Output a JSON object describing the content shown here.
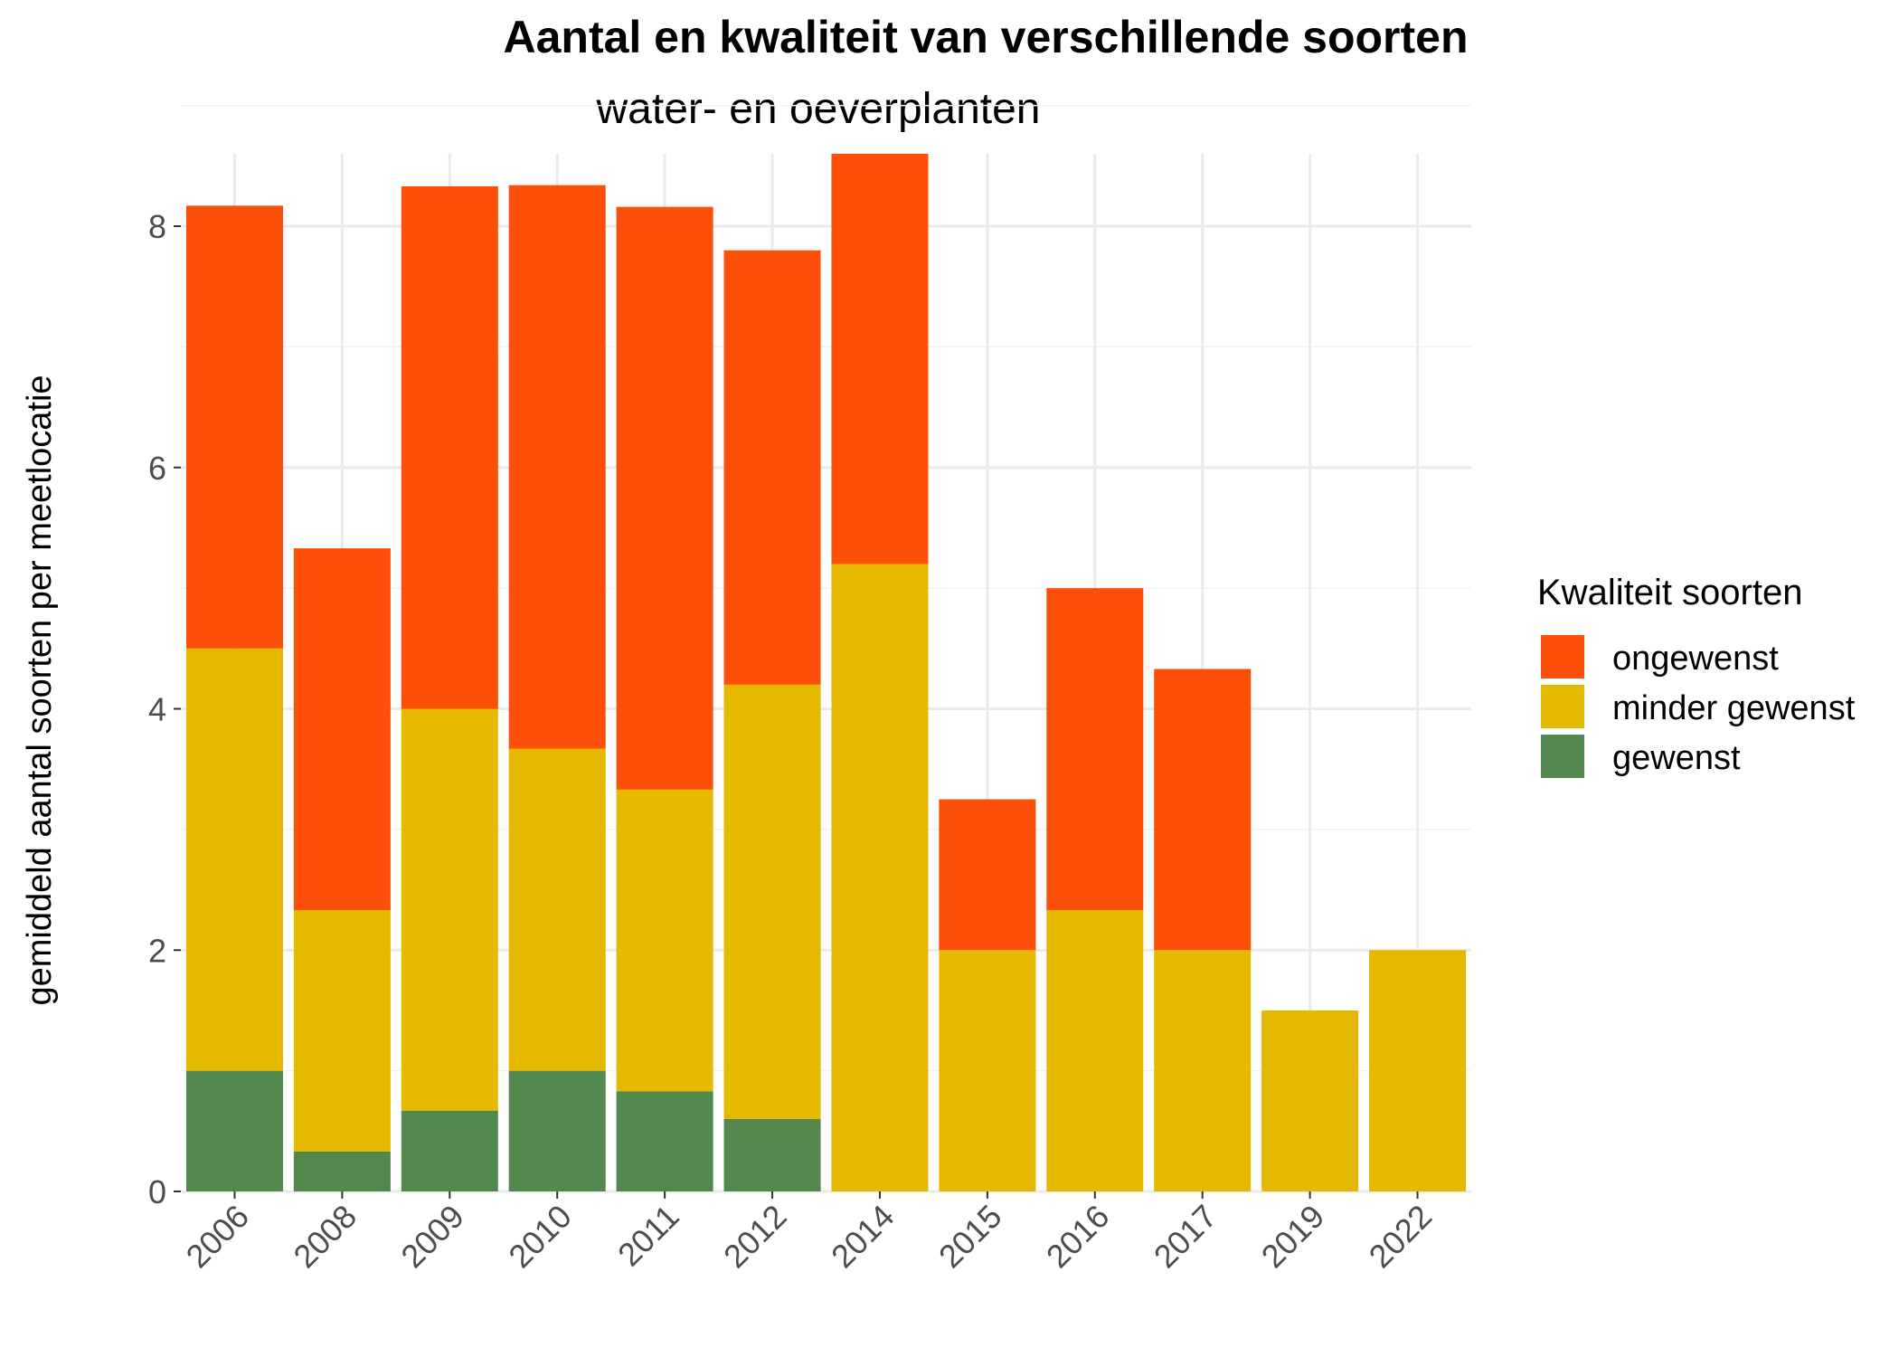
{
  "chart_data": {
    "type": "bar",
    "stacked": true,
    "title": "Aantal en kwaliteit van verschillende soorten",
    "subtitle": "water- en oeverplanten",
    "xlabel": "",
    "ylabel": "gemiddeld aantal soorten per meetlocatie",
    "ylim": [
      0,
      8.6
    ],
    "y_ticks": [
      0,
      2,
      4,
      6,
      8
    ],
    "grid": true,
    "categories": [
      "2006",
      "2008",
      "2009",
      "2010",
      "2011",
      "2012",
      "2014",
      "2015",
      "2016",
      "2017",
      "2019",
      "2022"
    ],
    "series": [
      {
        "name": "gewenst",
        "color": "#52874E",
        "values": [
          1.0,
          0.33,
          0.67,
          1.0,
          0.83,
          0.6,
          0,
          0,
          0,
          0,
          0,
          0
        ]
      },
      {
        "name": "minder gewenst",
        "color": "#E5B900",
        "values": [
          3.5,
          2.0,
          3.33,
          2.67,
          2.5,
          3.6,
          5.2,
          2.0,
          2.33,
          2.0,
          1.5,
          2.0
        ]
      },
      {
        "name": "ongewenst",
        "color": "#FC4F0A",
        "values": [
          3.67,
          3.0,
          4.33,
          4.67,
          4.83,
          3.6,
          3.4,
          1.25,
          2.67,
          2.33,
          0,
          0
        ]
      }
    ],
    "legend": {
      "title": "Kwaliteit soorten",
      "position": "right",
      "order": [
        "ongewenst",
        "minder gewenst",
        "gewenst"
      ]
    }
  }
}
